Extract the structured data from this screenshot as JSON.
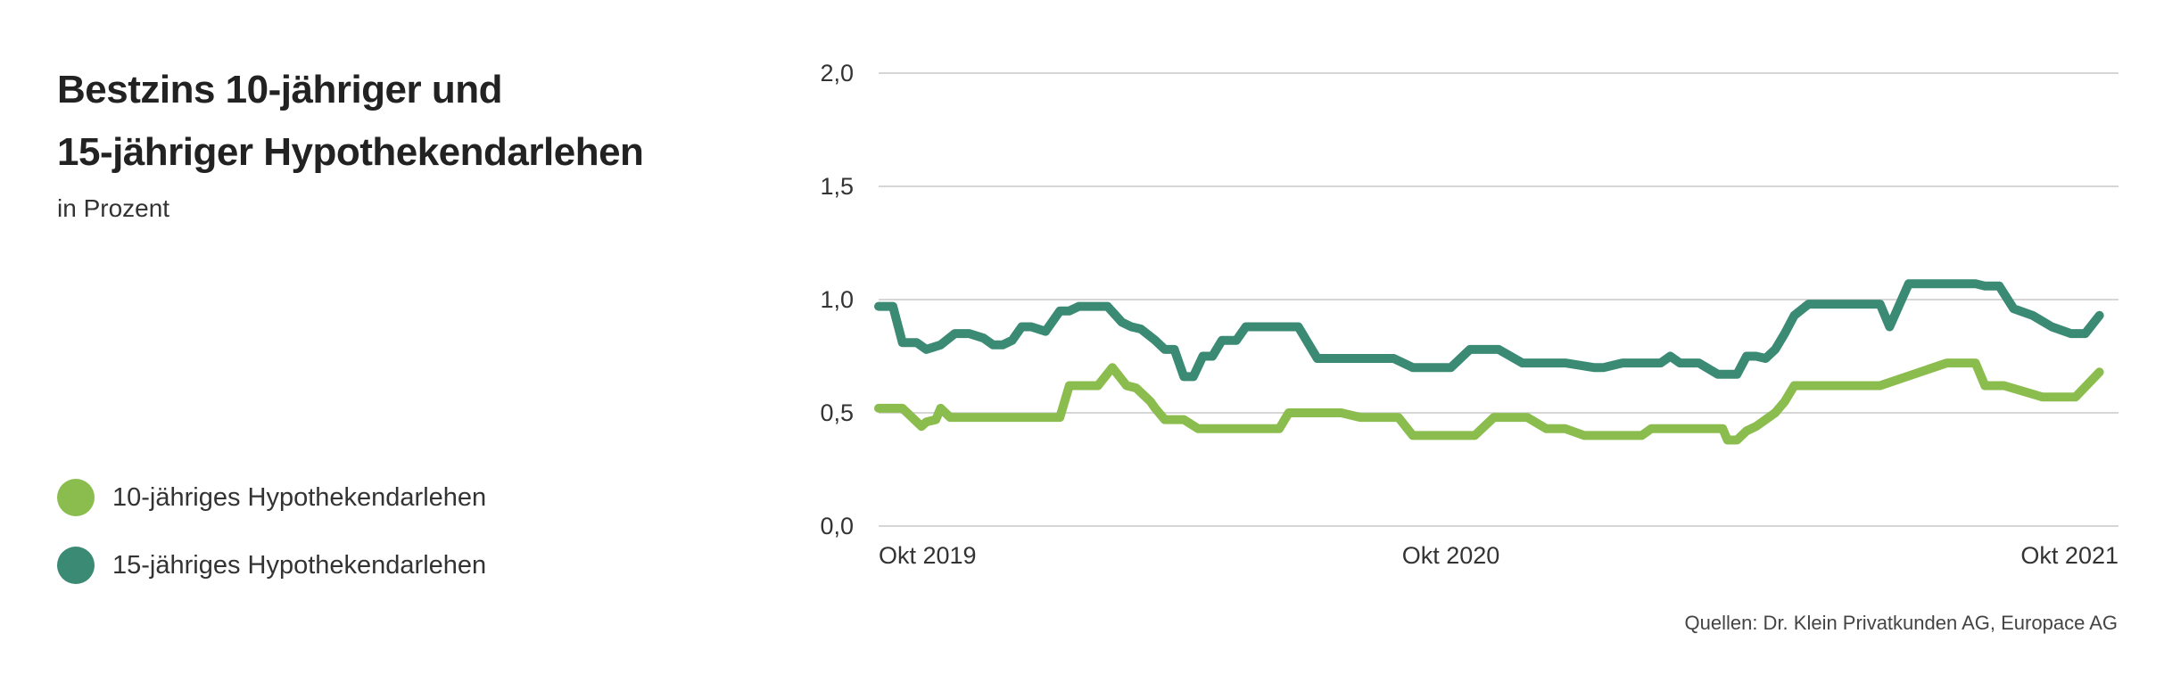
{
  "title_line1": "Bestzins 10-jähriger und",
  "title_line2": "15-jähriger Hypothekendarlehen",
  "subtitle": "in Prozent",
  "source": "Quellen: Dr. Klein Privatkunden AG, Europace AG",
  "legend": [
    {
      "label": "10-jähriges Hypothekendarlehen",
      "color": "#8bbd4e"
    },
    {
      "label": "15-jähriges Hypothekendarlehen",
      "color": "#3a8a74"
    }
  ],
  "chart_data": {
    "type": "line",
    "title": "Bestzins 10-jähriger und 15-jähriger Hypothekendarlehen",
    "subtitle": "in Prozent",
    "xlabel": "",
    "ylabel": "",
    "ylim": [
      0,
      2
    ],
    "yticks": [
      "0,0",
      "0,5",
      "1,0",
      "1,5",
      "2,0"
    ],
    "ytick_values": [
      0,
      0.5,
      1.0,
      1.5,
      2.0
    ],
    "xlim": [
      0,
      26
    ],
    "xticks": [
      "Okt 2019",
      "Okt 2020",
      "Okt 2021"
    ],
    "xtick_values": [
      0,
      12,
      24
    ],
    "grid": "horizontal",
    "legend_position": "left",
    "series": [
      {
        "name": "10-jähriges Hypothekendarlehen",
        "color": "#8bbd4e",
        "x": [
          0,
          0.5,
          0.9,
          1.0,
          1.2,
          1.3,
          1.5,
          1.9,
          2.0,
          2.2,
          2.4,
          2.8,
          3.3,
          3.8,
          4.0,
          4.2,
          4.6,
          4.9,
          5.2,
          5.4,
          5.7,
          5.8,
          6.0,
          6.4,
          6.7,
          6.9,
          7.2,
          7.6,
          8.4,
          8.6,
          9.7,
          10.1,
          10.2,
          10.9,
          11.2,
          12.2,
          12.5,
          12.9,
          13.4,
          13.6,
          14.0,
          14.4,
          14.8,
          16.0,
          16.2,
          16.6,
          16.9,
          17.2,
          17.5,
          17.7,
          17.8,
          18.0,
          18.2,
          18.4,
          18.8,
          19.0,
          19.2,
          20.0,
          20.8,
          21.0,
          22.4,
          22.6,
          22.8,
          23.0,
          23.2,
          23.6,
          24.4,
          24.6,
          24.9,
          25.1,
          25.6
        ],
        "values": [
          0.52,
          0.52,
          0.44,
          0.46,
          0.47,
          0.52,
          0.48,
          0.48,
          0.48,
          0.48,
          0.48,
          0.48,
          0.48,
          0.48,
          0.62,
          0.62,
          0.62,
          0.7,
          0.62,
          0.61,
          0.55,
          0.52,
          0.47,
          0.47,
          0.43,
          0.43,
          0.43,
          0.43,
          0.43,
          0.5,
          0.5,
          0.48,
          0.48,
          0.48,
          0.4,
          0.4,
          0.4,
          0.48,
          0.48,
          0.48,
          0.43,
          0.43,
          0.4,
          0.4,
          0.43,
          0.43,
          0.43,
          0.43,
          0.43,
          0.43,
          0.38,
          0.38,
          0.42,
          0.44,
          0.5,
          0.55,
          0.62,
          0.62,
          0.62,
          0.62,
          0.72,
          0.72,
          0.72,
          0.72,
          0.62,
          0.62,
          0.57,
          0.57,
          0.57,
          0.57,
          0.68
        ]
      },
      {
        "name": "15-jähriges Hypothekendarlehen",
        "color": "#3a8a74",
        "x": [
          0,
          0.3,
          0.5,
          0.8,
          1.0,
          1.3,
          1.6,
          1.9,
          2.2,
          2.4,
          2.6,
          2.8,
          3.0,
          3.2,
          3.5,
          3.8,
          4.0,
          4.2,
          4.5,
          4.8,
          5.1,
          5.3,
          5.5,
          5.8,
          6.0,
          6.2,
          6.4,
          6.6,
          6.8,
          7.0,
          7.2,
          7.5,
          7.7,
          8.0,
          8.2,
          8.5,
          8.8,
          9.2,
          9.4,
          9.6,
          10.0,
          10.4,
          10.6,
          10.8,
          11.2,
          11.5,
          12.0,
          12.4,
          12.7,
          13.0,
          13.5,
          14.0,
          14.2,
          14.4,
          15.0,
          15.2,
          15.6,
          16.0,
          16.4,
          16.6,
          16.8,
          17.2,
          17.6,
          18.0,
          18.2,
          18.4,
          18.6,
          18.8,
          19.0,
          19.2,
          19.5,
          19.8,
          20.0,
          20.4,
          20.8,
          21.0,
          21.2,
          21.6,
          22.0,
          22.4,
          22.8,
          23.0,
          23.2,
          23.5,
          23.8,
          24.2,
          24.6,
          25.0,
          25.3,
          25.6
        ],
        "values": [
          0.97,
          0.97,
          0.81,
          0.81,
          0.78,
          0.8,
          0.85,
          0.85,
          0.83,
          0.8,
          0.8,
          0.82,
          0.88,
          0.88,
          0.86,
          0.95,
          0.95,
          0.97,
          0.97,
          0.97,
          0.9,
          0.88,
          0.87,
          0.82,
          0.78,
          0.78,
          0.66,
          0.66,
          0.75,
          0.75,
          0.82,
          0.82,
          0.88,
          0.88,
          0.88,
          0.88,
          0.88,
          0.74,
          0.74,
          0.74,
          0.74,
          0.74,
          0.74,
          0.74,
          0.7,
          0.7,
          0.7,
          0.78,
          0.78,
          0.78,
          0.72,
          0.72,
          0.72,
          0.72,
          0.7,
          0.7,
          0.72,
          0.72,
          0.72,
          0.75,
          0.72,
          0.72,
          0.67,
          0.67,
          0.75,
          0.75,
          0.74,
          0.78,
          0.85,
          0.93,
          0.98,
          0.98,
          0.98,
          0.98,
          0.98,
          0.98,
          0.88,
          1.07,
          1.07,
          1.07,
          1.07,
          1.07,
          1.06,
          1.06,
          0.96,
          0.93,
          0.88,
          0.85,
          0.85,
          0.93
        ]
      }
    ]
  }
}
